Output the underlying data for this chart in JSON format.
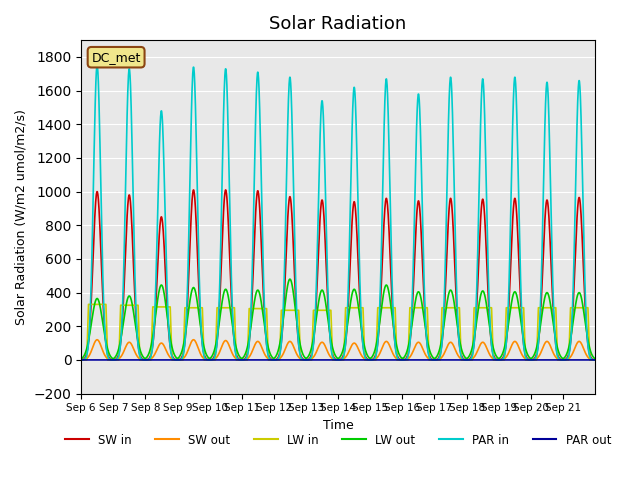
{
  "title": "Solar Radiation",
  "ylabel": "Solar Radiation (W/m2 umol/m2/s)",
  "xlabel": "Time",
  "ylim": [
    -200,
    1900
  ],
  "yticks": [
    -200,
    0,
    200,
    400,
    600,
    800,
    1000,
    1200,
    1400,
    1600,
    1800
  ],
  "bg_color": "#e8e8e8",
  "legend_label": "DC_met",
  "legend_box_facecolor": "#f0e68c",
  "legend_box_edgecolor": "#8b4513",
  "series_colors": {
    "SW in": "#cc0000",
    "SW out": "#ff8c00",
    "LW in": "#cccc00",
    "LW out": "#00cc00",
    "PAR in": "#00cccc",
    "PAR out": "#000099"
  },
  "n_days": 16,
  "day_labels": [
    "Sep 6",
    "Sep 7",
    "Sep 8",
    "Sep 9",
    "Sep 10",
    "Sep 11",
    "Sep 12",
    "Sep 13",
    "Sep 14",
    "Sep 15",
    "Sep 16",
    "Sep 17",
    "Sep 18",
    "Sep 19",
    "Sep 20",
    "Sep 21"
  ],
  "SW_in_peaks": [
    1000,
    980,
    850,
    1010,
    1010,
    1005,
    970,
    950,
    940,
    960,
    945,
    960,
    955,
    960,
    950,
    965
  ],
  "PAR_in_peaks": [
    1750,
    1730,
    1480,
    1740,
    1730,
    1710,
    1680,
    1540,
    1620,
    1670,
    1580,
    1680,
    1670,
    1680,
    1650,
    1660
  ],
  "SW_out_peaks": [
    120,
    105,
    100,
    120,
    115,
    110,
    110,
    105,
    100,
    110,
    105,
    105,
    105,
    110,
    110,
    110
  ],
  "LW_in_values": [
    330,
    325,
    315,
    310,
    310,
    305,
    295,
    295,
    310,
    310,
    310,
    310,
    310,
    310,
    310,
    310
  ],
  "LW_out_values": [
    365,
    380,
    445,
    430,
    420,
    415,
    480,
    415,
    420,
    445,
    405,
    415,
    410,
    405,
    400,
    400
  ]
}
